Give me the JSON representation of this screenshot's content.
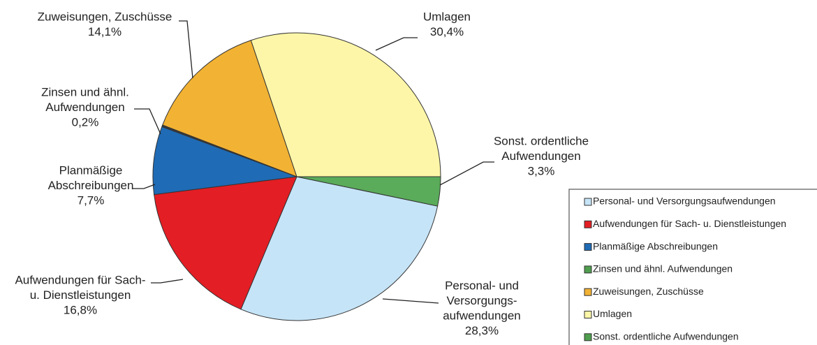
{
  "chart_data": {
    "type": "pie",
    "categories": [
      "Personal- und Versorgungsaufwendungen",
      "Aufwendungen für Sach- u. Dienstleistungen",
      "Planmäßige Abschreibungen",
      "Zinsen und ähnl. Aufwendungen",
      "Zuweisungen, Zuschüsse",
      "Umlagen",
      "Sonst. ordentliche Aufwendungen"
    ],
    "slice_labels": [
      [
        "Personal- und",
        "Versorgungs-",
        "aufwendungen"
      ],
      [
        "Aufwendungen für Sach-",
        "u. Dienstleistungen"
      ],
      [
        "Planmäßige",
        "Abschreibungen"
      ],
      [
        "Zinsen und ähnl.",
        "Aufwendungen"
      ],
      [
        "Zuweisungen, Zuschüsse"
      ],
      [
        "Umlagen"
      ],
      [
        "Sonst. ordentliche",
        "Aufwendungen"
      ]
    ],
    "values": [
      28.3,
      16.8,
      7.7,
      0.2,
      14.1,
      30.4,
      3.3
    ],
    "value_labels": [
      "28,3%",
      "16,8%",
      "7,7%",
      "0,2%",
      "14,1%",
      "30,4%",
      "3,3%"
    ],
    "colors": [
      "#c6e4f7",
      "#e31e24",
      "#1f6bb5",
      "#3a3a3a",
      "#f2b233",
      "#fdf6a8",
      "#5aab5a"
    ],
    "legend_colors": [
      "#c6e4f7",
      "#e31e24",
      "#1f6bb5",
      "#4f9e4f",
      "#f2b233",
      "#fdf6a8",
      "#4f9e4f"
    ],
    "legend": "right"
  }
}
